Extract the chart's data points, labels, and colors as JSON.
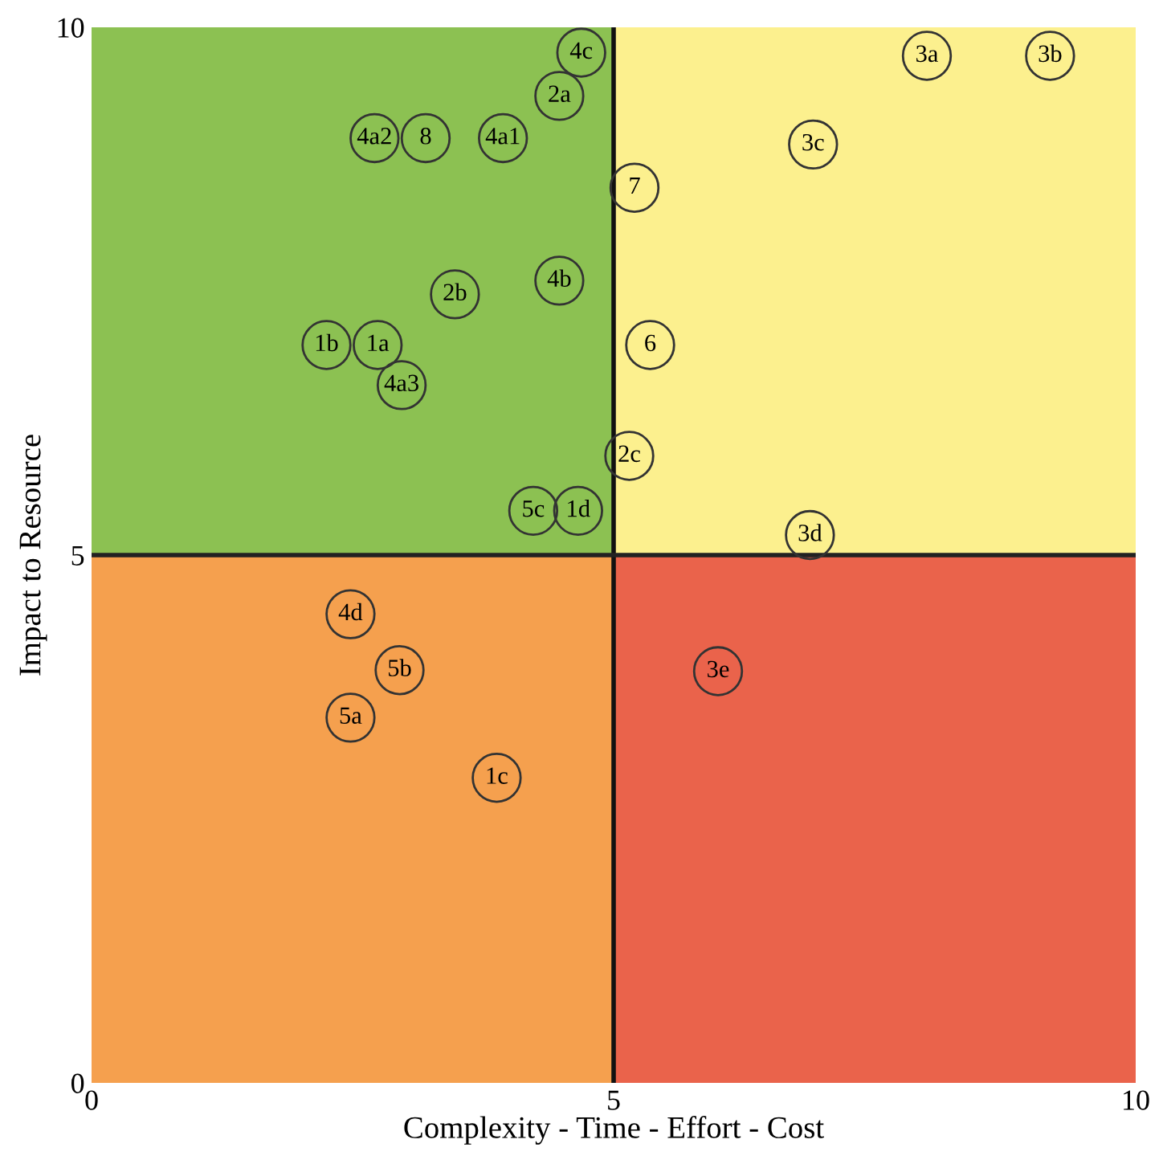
{
  "chart_data": {
    "type": "scatter",
    "xlabel": "Complexity - Time - Effort - Cost",
    "ylabel": "Impact to Resource",
    "xlim": [
      0,
      10
    ],
    "ylim": [
      0,
      10
    ],
    "xticks": [
      0,
      5,
      10
    ],
    "yticks": [
      0,
      5,
      10
    ],
    "grid": false,
    "marker": "circle",
    "series": [
      {
        "color": "#333333",
        "x": [
          4.69,
          4.48,
          8.0,
          9.18,
          2.71,
          3.2,
          3.94,
          6.91,
          5.2,
          4.48,
          3.48,
          2.25,
          2.74,
          5.35,
          2.97,
          5.15,
          4.23,
          4.66,
          6.88,
          2.48,
          2.95,
          6.0,
          2.48,
          3.88
        ],
        "values": [
          9.76,
          9.35,
          9.73,
          9.73,
          8.95,
          8.95,
          8.95,
          8.89,
          8.48,
          7.6,
          7.47,
          6.99,
          6.99,
          6.99,
          6.61,
          5.94,
          5.42,
          5.42,
          5.19,
          4.44,
          3.91,
          3.9,
          3.46,
          2.89
        ]
      }
    ],
    "annotations": [
      {
        "text": "4c",
        "x": 4.69,
        "y": 9.76
      },
      {
        "text": "2a",
        "x": 4.48,
        "y": 9.35
      },
      {
        "text": "3a",
        "x": 8.0,
        "y": 9.73
      },
      {
        "text": "3b",
        "x": 9.18,
        "y": 9.73
      },
      {
        "text": "4a2",
        "x": 2.71,
        "y": 8.95
      },
      {
        "text": "8",
        "x": 3.2,
        "y": 8.95
      },
      {
        "text": "4a1",
        "x": 3.94,
        "y": 8.95
      },
      {
        "text": "3c",
        "x": 6.91,
        "y": 8.89
      },
      {
        "text": "7",
        "x": 5.2,
        "y": 8.48
      },
      {
        "text": "4b",
        "x": 4.48,
        "y": 7.6
      },
      {
        "text": "2b",
        "x": 3.48,
        "y": 7.47
      },
      {
        "text": "1b",
        "x": 2.25,
        "y": 6.99
      },
      {
        "text": "1a",
        "x": 2.74,
        "y": 6.99
      },
      {
        "text": "6",
        "x": 5.35,
        "y": 6.99
      },
      {
        "text": "4a3",
        "x": 2.97,
        "y": 6.61
      },
      {
        "text": "2c",
        "x": 5.15,
        "y": 5.94
      },
      {
        "text": "5c",
        "x": 4.23,
        "y": 5.42
      },
      {
        "text": "1d",
        "x": 4.66,
        "y": 5.42
      },
      {
        "text": "3d",
        "x": 6.88,
        "y": 5.19
      },
      {
        "text": "4d",
        "x": 2.48,
        "y": 4.44
      },
      {
        "text": "5b",
        "x": 2.95,
        "y": 3.91
      },
      {
        "text": "3e",
        "x": 6.0,
        "y": 3.9
      },
      {
        "text": "5a",
        "x": 2.48,
        "y": 3.46
      },
      {
        "text": "1c",
        "x": 3.88,
        "y": 2.89
      }
    ],
    "ref_lines": [
      {
        "axis": "x",
        "value": 5,
        "color": "#111111"
      },
      {
        "axis": "y",
        "value": 5,
        "color": "#222222"
      }
    ]
  }
}
